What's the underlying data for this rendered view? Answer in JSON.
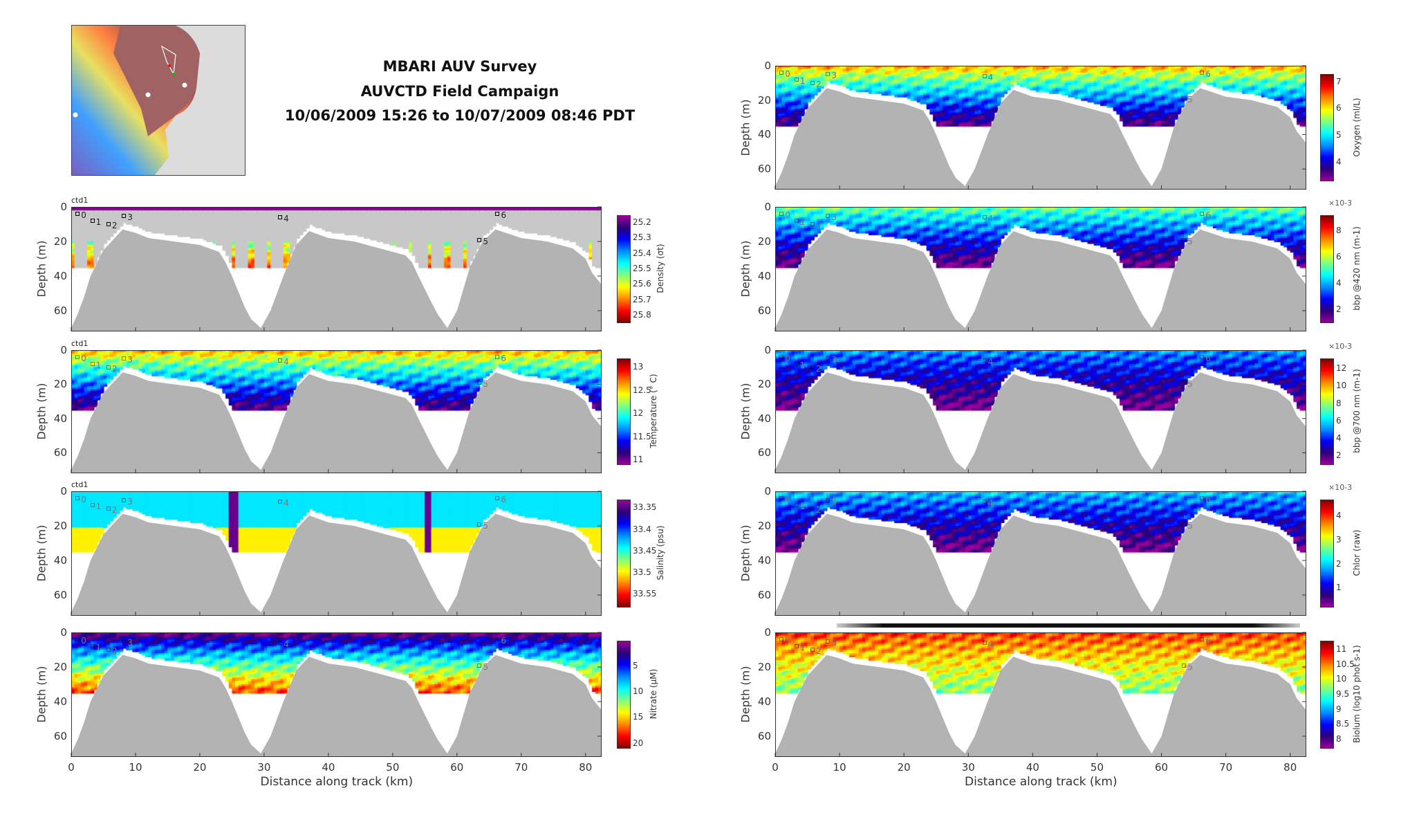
{
  "header": {
    "title_line1": "MBARI AUV Survey",
    "title_line2": "AUVCTD Field Campaign",
    "title_line3": "10/06/2009 15:26 to 10/07/2009 08:46 PDT"
  },
  "chart_data": {
    "type": "heatmap",
    "xlabel": "Distance along track (km)",
    "ylabel": "Depth (m)",
    "xlim": [
      0,
      82.5
    ],
    "ylim": [
      0,
      72
    ],
    "xticks": [
      "0",
      "10",
      "20",
      "30",
      "40",
      "50",
      "60",
      "70",
      "80"
    ],
    "yticks": [
      "0",
      "20",
      "40",
      "60"
    ],
    "bathymetry_km": [
      0,
      1,
      2,
      3,
      5,
      8,
      10,
      12,
      16,
      20,
      23,
      24,
      25,
      27,
      28,
      29.5,
      31,
      33,
      35,
      37,
      40,
      44,
      48,
      52,
      53,
      54,
      56,
      57,
      58.5,
      60,
      62,
      64,
      66,
      70,
      74,
      78,
      80,
      81,
      82.5
    ],
    "bathymetry_depth_m": [
      70,
      62,
      52,
      40,
      25,
      13,
      15,
      18,
      20,
      22,
      26,
      32,
      40,
      58,
      65,
      70,
      60,
      40,
      22,
      14,
      18,
      20,
      24,
      28,
      32,
      40,
      55,
      62,
      70,
      60,
      35,
      20,
      13,
      18,
      20,
      24,
      30,
      38,
      45
    ],
    "survey_max_depth_m": 35,
    "waypoints": [
      {
        "label": "0",
        "km": 1,
        "depth": 4
      },
      {
        "label": "1",
        "km": 3.3,
        "depth": 8
      },
      {
        "label": "2",
        "km": 5.8,
        "depth": 10
      },
      {
        "label": "3",
        "km": 8.2,
        "depth": 5
      },
      {
        "label": "4",
        "km": 32.5,
        "depth": 6
      },
      {
        "label": "5",
        "km": 63.5,
        "depth": 19
      },
      {
        "label": "6",
        "km": 66.3,
        "depth": 4
      }
    ],
    "panels": [
      {
        "id": "oxygen",
        "column": "right",
        "row": 0,
        "ctd_label": "",
        "cbar_label": "Oxygen (ml/L)",
        "multiplier": "",
        "ticks": [
          "4",
          "5",
          "6",
          "7"
        ],
        "tick_values": [
          4,
          5,
          6,
          7
        ],
        "range": [
          3.3,
          7.3
        ],
        "reversed": false,
        "surface_level": 0.75,
        "deep_level": 0.05,
        "style": "field"
      },
      {
        "id": "density",
        "column": "left",
        "row": 1,
        "ctd_label": "ctd1",
        "cbar_label": "Density (σt)",
        "multiplier": "",
        "ticks": [
          "25.2",
          "25.3",
          "25.4",
          "25.5",
          "25.6",
          "25.7",
          "25.8"
        ],
        "tick_values": [
          25.2,
          25.3,
          25.4,
          25.5,
          25.6,
          25.7,
          25.8
        ],
        "range": [
          25.15,
          25.85
        ],
        "reversed": true,
        "surface_level": 0.05,
        "deep_level": 0.85,
        "style": "streaks"
      },
      {
        "id": "temperature",
        "column": "left",
        "row": 2,
        "ctd_label": "ctd1",
        "cbar_label": "Temperature (° C)",
        "multiplier": "",
        "ticks": [
          "11",
          "11.5",
          "12",
          "12.5",
          "13"
        ],
        "tick_values": [
          11,
          11.5,
          12,
          12.5,
          13
        ],
        "range": [
          10.9,
          13.2
        ],
        "reversed": false,
        "surface_level": 0.75,
        "deep_level": 0.05,
        "style": "field"
      },
      {
        "id": "salinity",
        "column": "left",
        "row": 3,
        "ctd_label": "ctd1",
        "cbar_label": "Salinity (psu)",
        "multiplier": "",
        "ticks": [
          "33.35",
          "33.4",
          "33.45",
          "33.5",
          "33.55"
        ],
        "tick_values": [
          33.35,
          33.4,
          33.45,
          33.5,
          33.55
        ],
        "range": [
          33.33,
          33.58
        ],
        "reversed": true,
        "surface_level": 0.42,
        "deep_level": 0.72,
        "style": "blocks"
      },
      {
        "id": "nitrate",
        "column": "left",
        "row": 4,
        "ctd_label": "",
        "cbar_label": "Nitrate (μM)",
        "multiplier": "",
        "ticks": [
          "5",
          "10",
          "15",
          "20"
        ],
        "tick_values": [
          5,
          10,
          15,
          20
        ],
        "range": [
          0,
          21
        ],
        "reversed": true,
        "surface_level": 0.02,
        "deep_level": 0.85,
        "style": "field"
      },
      {
        "id": "bbp420",
        "column": "right",
        "row": 1,
        "ctd_label": "",
        "cbar_label": "bbp @420 nm (m-1)",
        "multiplier": "×10-3",
        "ticks": [
          "2",
          "4",
          "6",
          "8"
        ],
        "tick_values": [
          2,
          4,
          6,
          8
        ],
        "range": [
          1,
          9.2
        ],
        "reversed": false,
        "surface_level": 0.55,
        "deep_level": 0.02,
        "style": "field"
      },
      {
        "id": "bbp700",
        "column": "right",
        "row": 2,
        "ctd_label": "",
        "cbar_label": "bbp @700 nm (m-1)",
        "multiplier": "×10-3",
        "ticks": [
          "2",
          "4",
          "6",
          "8",
          "10",
          "12"
        ],
        "tick_values": [
          2,
          4,
          6,
          8,
          10,
          12
        ],
        "range": [
          1,
          13.2
        ],
        "reversed": false,
        "surface_level": 0.35,
        "deep_level": 0.02,
        "style": "field"
      },
      {
        "id": "chlor",
        "column": "right",
        "row": 3,
        "ctd_label": "",
        "cbar_label": "Chlor (raw)",
        "multiplier": "×10-3",
        "ticks": [
          "1",
          "2",
          "3",
          "4"
        ],
        "tick_values": [
          1,
          2,
          3,
          4
        ],
        "range": [
          0.2,
          4.7
        ],
        "reversed": false,
        "surface_level": 0.4,
        "deep_level": 0.02,
        "style": "field"
      },
      {
        "id": "biolum",
        "column": "right",
        "row": 4,
        "ctd_label": "",
        "cbar_label": "Biolum (log10 phot s-1)",
        "multiplier": "",
        "ticks": [
          "8",
          "8.5",
          "9",
          "9.5",
          "10",
          "10.5",
          "11"
        ],
        "tick_values": [
          8,
          8.5,
          9,
          9.5,
          10,
          10.5,
          11
        ],
        "range": [
          7.7,
          11.3
        ],
        "reversed": false,
        "surface_level": 0.85,
        "deep_level": 0.55,
        "style": "field"
      }
    ]
  },
  "colors": {
    "seafloor": "#b3b3b3",
    "no_data": "#c8c8c8",
    "colormap": [
      "#9a009a",
      "#2a0078",
      "#0000ff",
      "#0090ff",
      "#00ffff",
      "#80ff80",
      "#ffff00",
      "#ff8800",
      "#ff0000",
      "#800000"
    ]
  }
}
